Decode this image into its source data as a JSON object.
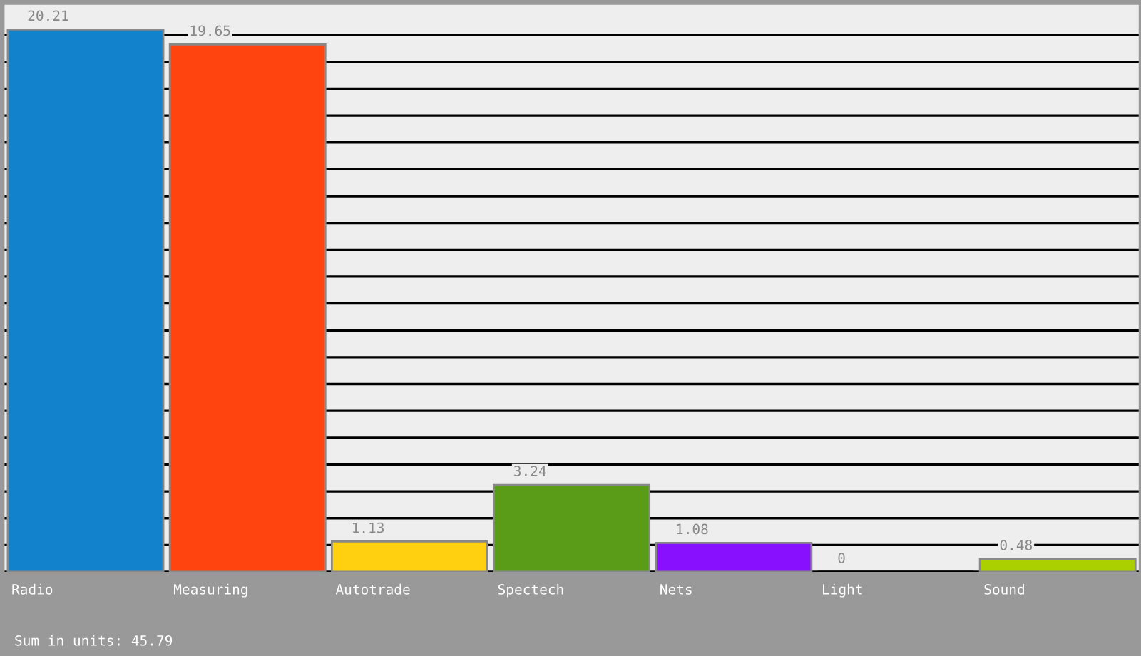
{
  "chart_data": {
    "type": "bar",
    "categories": [
      "Radio",
      "Measuring",
      "Autotrade",
      "Spectech",
      "Nets",
      "Light",
      "Sound"
    ],
    "values": [
      20.21,
      19.65,
      1.13,
      3.24,
      1.08,
      0,
      0.48
    ],
    "colors": [
      "#1282cc",
      "#ff4410",
      "#ffd010",
      "#5a9c18",
      "#8810ff",
      "#000000",
      "#aad000"
    ],
    "data_labels": true,
    "ylim": [
      0,
      21.2
    ],
    "yticks": [
      {
        "value": 0,
        "label": null
      },
      {
        "value": 1,
        "label": null
      },
      {
        "value": 2,
        "label": null
      },
      {
        "value": 3,
        "label": null
      },
      {
        "value": 4,
        "label": null
      },
      {
        "value": 5,
        "label": null
      },
      {
        "value": 6,
        "label": null
      },
      {
        "value": 7,
        "label": null
      },
      {
        "value": 8,
        "label": null
      },
      {
        "value": 9,
        "label": null
      },
      {
        "value": 10,
        "label": null
      },
      {
        "value": 11,
        "label": null
      },
      {
        "value": 12,
        "label": null
      },
      {
        "value": 13,
        "label": null
      },
      {
        "value": 14,
        "label": null
      },
      {
        "value": 15,
        "label": null
      },
      {
        "value": 16,
        "label": null
      },
      {
        "value": 17,
        "label": null
      },
      {
        "value": 18,
        "label": null
      },
      {
        "value": 19,
        "label": null
      },
      {
        "value": 20,
        "label": null
      }
    ],
    "grid": "y",
    "tick_labels": "x",
    "annotations": [
      "Sum in units: 45.79"
    ]
  }
}
